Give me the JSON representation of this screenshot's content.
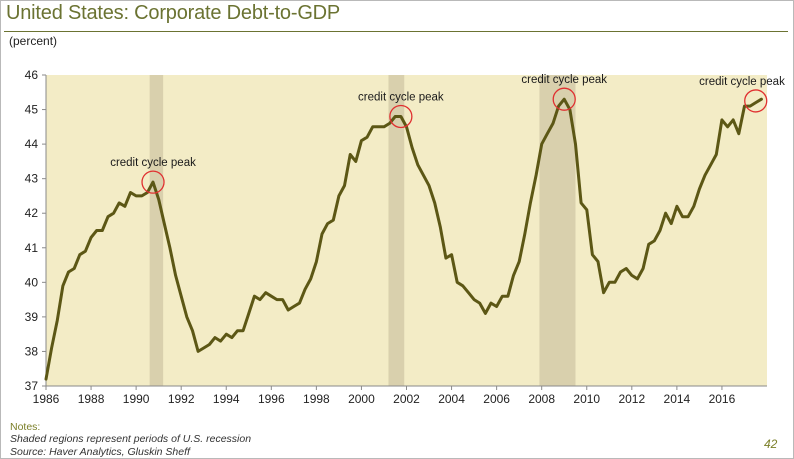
{
  "header": {
    "title": "United States: Corporate Debt-to-GDP",
    "units": "(percent)"
  },
  "footer": {
    "notes_label": "Notes:",
    "note_line": "Shaded regions represent periods of U.S. recession",
    "source_line": "Source: Haver Analytics, Gluskin Sheff",
    "page_number": "42"
  },
  "colors": {
    "plot_bg": "#f3ecc6",
    "line": "#5c5715",
    "recession": "#d9d0ad",
    "circle": "#e03030",
    "title": "#6b7332"
  },
  "chart_data": {
    "type": "line",
    "title": "United States: Corporate Debt-to-GDP",
    "ylabel": "(percent)",
    "xlabel": "",
    "xlim": [
      1986,
      2018
    ],
    "ylim": [
      37,
      46
    ],
    "xticks": [
      1986,
      1988,
      1990,
      1992,
      1994,
      1996,
      1998,
      2000,
      2002,
      2004,
      2006,
      2008,
      2010,
      2012,
      2014,
      2016
    ],
    "yticks": [
      37,
      38,
      39,
      40,
      41,
      42,
      43,
      44,
      45,
      46
    ],
    "grid": false,
    "recessions": [
      [
        1990.6,
        1991.2
      ],
      [
        2001.2,
        2001.9
      ],
      [
        2007.9,
        2009.5
      ]
    ],
    "series": [
      {
        "name": "Corporate Debt-to-GDP",
        "x": [
          1986.0,
          1986.25,
          1986.5,
          1986.75,
          1987.0,
          1987.25,
          1987.5,
          1987.75,
          1988.0,
          1988.25,
          1988.5,
          1988.75,
          1989.0,
          1989.25,
          1989.5,
          1989.75,
          1990.0,
          1990.25,
          1990.5,
          1990.75,
          1991.0,
          1991.25,
          1991.5,
          1991.75,
          1992.0,
          1992.25,
          1992.5,
          1992.75,
          1993.0,
          1993.25,
          1993.5,
          1993.75,
          1994.0,
          1994.25,
          1994.5,
          1994.75,
          1995.0,
          1995.25,
          1995.5,
          1995.75,
          1996.0,
          1996.25,
          1996.5,
          1996.75,
          1997.0,
          1997.25,
          1997.5,
          1997.75,
          1998.0,
          1998.25,
          1998.5,
          1998.75,
          1999.0,
          1999.25,
          1999.5,
          1999.75,
          2000.0,
          2000.25,
          2000.5,
          2000.75,
          2001.0,
          2001.25,
          2001.5,
          2001.75,
          2002.0,
          2002.25,
          2002.5,
          2002.75,
          2003.0,
          2003.25,
          2003.5,
          2003.75,
          2004.0,
          2004.25,
          2004.5,
          2004.75,
          2005.0,
          2005.25,
          2005.5,
          2005.75,
          2006.0,
          2006.25,
          2006.5,
          2006.75,
          2007.0,
          2007.25,
          2007.5,
          2007.75,
          2008.0,
          2008.25,
          2008.5,
          2008.75,
          2009.0,
          2009.25,
          2009.5,
          2009.75,
          2010.0,
          2010.25,
          2010.5,
          2010.75,
          2011.0,
          2011.25,
          2011.5,
          2011.75,
          2012.0,
          2012.25,
          2012.5,
          2012.75,
          2013.0,
          2013.25,
          2013.5,
          2013.75,
          2014.0,
          2014.25,
          2014.5,
          2014.75,
          2015.0,
          2015.25,
          2015.5,
          2015.75,
          2016.0,
          2016.25,
          2016.5,
          2016.75,
          2017.0,
          2017.25,
          2017.5,
          2017.75
        ],
        "y": [
          37.2,
          38.1,
          38.9,
          39.9,
          40.3,
          40.4,
          40.8,
          40.9,
          41.3,
          41.5,
          41.5,
          41.9,
          42.0,
          42.3,
          42.2,
          42.6,
          42.5,
          42.5,
          42.6,
          42.9,
          42.4,
          41.7,
          41.0,
          40.2,
          39.6,
          39.0,
          38.6,
          38.0,
          38.1,
          38.2,
          38.4,
          38.3,
          38.5,
          38.4,
          38.6,
          38.6,
          39.1,
          39.6,
          39.5,
          39.7,
          39.6,
          39.5,
          39.5,
          39.2,
          39.3,
          39.4,
          39.8,
          40.1,
          40.6,
          41.4,
          41.7,
          41.8,
          42.5,
          42.8,
          43.7,
          43.5,
          44.1,
          44.2,
          44.5,
          44.5,
          44.5,
          44.6,
          44.8,
          44.8,
          44.5,
          43.9,
          43.4,
          43.1,
          42.8,
          42.3,
          41.6,
          40.7,
          40.8,
          40.0,
          39.9,
          39.7,
          39.5,
          39.4,
          39.1,
          39.4,
          39.3,
          39.6,
          39.6,
          40.2,
          40.6,
          41.4,
          42.3,
          43.1,
          44.0,
          44.3,
          44.6,
          45.1,
          45.3,
          45.0,
          44.0,
          42.3,
          42.1,
          40.8,
          40.6,
          39.7,
          40.0,
          40.0,
          40.3,
          40.4,
          40.2,
          40.1,
          40.4,
          41.1,
          41.2,
          41.5,
          42.0,
          41.7,
          42.2,
          41.9,
          41.9,
          42.2,
          42.7,
          43.1,
          43.4,
          43.7,
          44.7,
          44.5,
          44.7,
          44.3,
          45.1,
          45.1,
          45.2,
          45.3
        ]
      }
    ],
    "annotations": [
      {
        "text": "credit cycle peak",
        "x": 1990.75,
        "y": 42.9
      },
      {
        "text": "credit cycle peak",
        "x": 2001.75,
        "y": 44.8
      },
      {
        "text": "credit cycle peak",
        "x": 2009.0,
        "y": 45.3
      },
      {
        "text": "credit cycle peak",
        "x": 2017.5,
        "y": 45.25
      }
    ]
  }
}
